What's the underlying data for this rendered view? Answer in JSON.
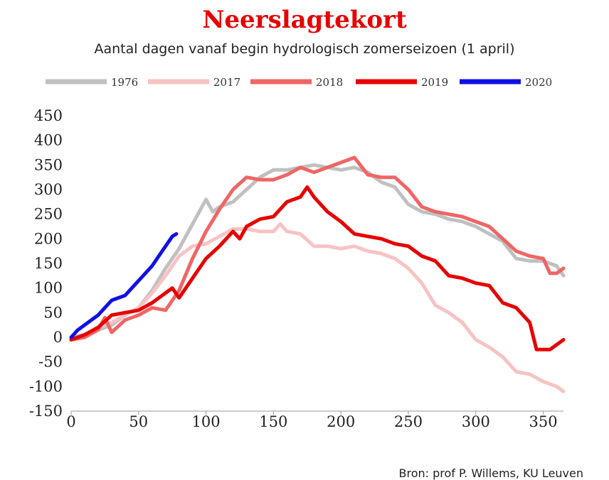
{
  "chart_data": {
    "type": "line",
    "title": "Neerslagtekort",
    "subtitle": "Aantal dagen vanaf begin hydrologisch zomerseizoen (1 april)",
    "source": "Bron: prof P. Willems, KU Leuven",
    "xlim": [
      0,
      365
    ],
    "ylim": [
      -150,
      450
    ],
    "xticks": [
      0,
      50,
      100,
      150,
      200,
      250,
      300,
      350
    ],
    "yticks": [
      450,
      400,
      350,
      300,
      250,
      200,
      150,
      100,
      50,
      0,
      -50,
      -100,
      -150
    ],
    "grid": false,
    "legend_position": "top",
    "series": [
      {
        "name": "1976",
        "color": "#c0c0c0",
        "points": [
          [
            0,
            0
          ],
          [
            10,
            5
          ],
          [
            20,
            15
          ],
          [
            30,
            25
          ],
          [
            40,
            45
          ],
          [
            50,
            60
          ],
          [
            60,
            95
          ],
          [
            70,
            140
          ],
          [
            80,
            180
          ],
          [
            90,
            230
          ],
          [
            100,
            280
          ],
          [
            105,
            255
          ],
          [
            110,
            265
          ],
          [
            120,
            275
          ],
          [
            130,
            300
          ],
          [
            140,
            325
          ],
          [
            150,
            340
          ],
          [
            160,
            340
          ],
          [
            170,
            345
          ],
          [
            180,
            350
          ],
          [
            190,
            345
          ],
          [
            200,
            340
          ],
          [
            210,
            345
          ],
          [
            220,
            335
          ],
          [
            230,
            315
          ],
          [
            240,
            305
          ],
          [
            250,
            270
          ],
          [
            260,
            255
          ],
          [
            270,
            250
          ],
          [
            280,
            240
          ],
          [
            290,
            235
          ],
          [
            300,
            225
          ],
          [
            310,
            210
          ],
          [
            320,
            195
          ],
          [
            330,
            160
          ],
          [
            340,
            155
          ],
          [
            350,
            155
          ],
          [
            360,
            145
          ],
          [
            365,
            125
          ]
        ]
      },
      {
        "name": "2017",
        "color": "#f7c3c3",
        "points": [
          [
            0,
            -5
          ],
          [
            10,
            5
          ],
          [
            20,
            20
          ],
          [
            30,
            30
          ],
          [
            40,
            45
          ],
          [
            50,
            60
          ],
          [
            60,
            90
          ],
          [
            70,
            125
          ],
          [
            80,
            165
          ],
          [
            90,
            185
          ],
          [
            100,
            190
          ],
          [
            110,
            205
          ],
          [
            120,
            220
          ],
          [
            130,
            220
          ],
          [
            140,
            215
          ],
          [
            150,
            215
          ],
          [
            155,
            230
          ],
          [
            160,
            215
          ],
          [
            170,
            210
          ],
          [
            180,
            185
          ],
          [
            190,
            185
          ],
          [
            200,
            180
          ],
          [
            210,
            185
          ],
          [
            220,
            175
          ],
          [
            230,
            170
          ],
          [
            240,
            160
          ],
          [
            250,
            140
          ],
          [
            260,
            110
          ],
          [
            270,
            65
          ],
          [
            280,
            50
          ],
          [
            290,
            30
          ],
          [
            300,
            -5
          ],
          [
            310,
            -20
          ],
          [
            320,
            -40
          ],
          [
            330,
            -70
          ],
          [
            340,
            -75
          ],
          [
            350,
            -90
          ],
          [
            360,
            -100
          ],
          [
            365,
            -110
          ]
        ]
      },
      {
        "name": "2018",
        "color": "#f06565",
        "points": [
          [
            0,
            -5
          ],
          [
            10,
            0
          ],
          [
            20,
            15
          ],
          [
            25,
            40
          ],
          [
            30,
            10
          ],
          [
            40,
            35
          ],
          [
            50,
            45
          ],
          [
            60,
            60
          ],
          [
            70,
            55
          ],
          [
            80,
            95
          ],
          [
            90,
            160
          ],
          [
            100,
            215
          ],
          [
            110,
            260
          ],
          [
            120,
            300
          ],
          [
            130,
            325
          ],
          [
            140,
            320
          ],
          [
            150,
            320
          ],
          [
            160,
            330
          ],
          [
            170,
            345
          ],
          [
            180,
            335
          ],
          [
            190,
            345
          ],
          [
            200,
            355
          ],
          [
            210,
            365
          ],
          [
            220,
            330
          ],
          [
            230,
            325
          ],
          [
            240,
            325
          ],
          [
            250,
            300
          ],
          [
            260,
            265
          ],
          [
            270,
            255
          ],
          [
            280,
            250
          ],
          [
            290,
            245
          ],
          [
            300,
            235
          ],
          [
            310,
            225
          ],
          [
            320,
            200
          ],
          [
            330,
            175
          ],
          [
            340,
            165
          ],
          [
            350,
            160
          ],
          [
            355,
            130
          ],
          [
            360,
            130
          ],
          [
            365,
            140
          ]
        ]
      },
      {
        "name": "2019",
        "color": "#e60000",
        "points": [
          [
            0,
            -5
          ],
          [
            10,
            5
          ],
          [
            20,
            20
          ],
          [
            30,
            45
          ],
          [
            40,
            50
          ],
          [
            50,
            55
          ],
          [
            60,
            70
          ],
          [
            70,
            90
          ],
          [
            75,
            100
          ],
          [
            80,
            80
          ],
          [
            90,
            120
          ],
          [
            100,
            160
          ],
          [
            110,
            185
          ],
          [
            120,
            215
          ],
          [
            125,
            200
          ],
          [
            130,
            225
          ],
          [
            140,
            240
          ],
          [
            150,
            245
          ],
          [
            160,
            275
          ],
          [
            170,
            285
          ],
          [
            175,
            305
          ],
          [
            180,
            285
          ],
          [
            190,
            255
          ],
          [
            200,
            235
          ],
          [
            210,
            210
          ],
          [
            220,
            205
          ],
          [
            230,
            200
          ],
          [
            240,
            190
          ],
          [
            250,
            185
          ],
          [
            260,
            165
          ],
          [
            270,
            155
          ],
          [
            280,
            125
          ],
          [
            290,
            120
          ],
          [
            300,
            110
          ],
          [
            310,
            105
          ],
          [
            320,
            70
          ],
          [
            330,
            60
          ],
          [
            340,
            30
          ],
          [
            345,
            -25
          ],
          [
            355,
            -25
          ],
          [
            365,
            -5
          ]
        ]
      },
      {
        "name": "2020",
        "color": "#1010e6",
        "points": [
          [
            0,
            0
          ],
          [
            5,
            15
          ],
          [
            10,
            25
          ],
          [
            15,
            35
          ],
          [
            20,
            45
          ],
          [
            25,
            60
          ],
          [
            30,
            75
          ],
          [
            35,
            80
          ],
          [
            40,
            85
          ],
          [
            45,
            100
          ],
          [
            50,
            115
          ],
          [
            55,
            130
          ],
          [
            60,
            145
          ],
          [
            65,
            165
          ],
          [
            70,
            185
          ],
          [
            75,
            205
          ],
          [
            78,
            210
          ]
        ]
      }
    ]
  }
}
